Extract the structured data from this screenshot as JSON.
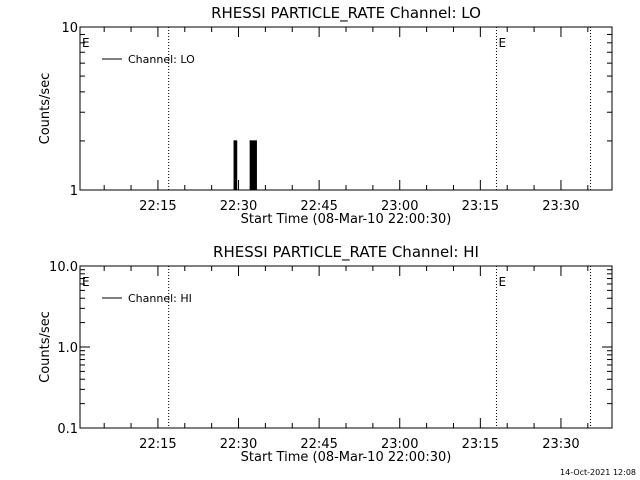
{
  "chart_data": [
    {
      "type": "line",
      "title": "RHESSI PARTICLE_RATE Channel: LO",
      "xlabel": "Start Time (08-Mar-10 22:00:30)",
      "ylabel": "Counts/sec",
      "y_scale": "log",
      "ylim": [
        1,
        10
      ],
      "yticks": [
        "1",
        "10"
      ],
      "xlim": [
        "22:00:30",
        "23:39:30"
      ],
      "xticks": [
        "22:15",
        "22:30",
        "22:45",
        "23:00",
        "23:15",
        "23:30"
      ],
      "legend": {
        "placement": "top-left",
        "entries": [
          "Channel: LO"
        ]
      },
      "series": [
        {
          "name": "Channel: LO",
          "x": [
            "22:29:00",
            "22:29:10",
            "22:29:20",
            "22:29:30",
            "22:29:40",
            "22:30:00",
            "22:32:00",
            "22:32:10",
            "22:32:20",
            "22:32:30",
            "22:32:40",
            "22:32:50",
            "22:33:00",
            "22:33:10",
            "22:33:20"
          ],
          "y": [
            1,
            2,
            1,
            2,
            1,
            1,
            1,
            2,
            1,
            2,
            1,
            2,
            1,
            2,
            1
          ]
        }
      ],
      "annotations": [
        {
          "label": "E",
          "x": "22:00:30"
        },
        {
          "label": "E",
          "x": "23:18:00"
        }
      ],
      "vlines": [
        "22:17:00",
        "23:18:00",
        "23:35:30"
      ]
    },
    {
      "type": "line",
      "title": "RHESSI PARTICLE_RATE Channel: HI",
      "xlabel": "Start Time (08-Mar-10 22:00:30)",
      "ylabel": "Counts/sec",
      "y_scale": "log",
      "ylim": [
        0.1,
        10
      ],
      "yticks": [
        "0.1",
        "1.0",
        "10.0"
      ],
      "xlim": [
        "22:00:30",
        "23:39:30"
      ],
      "xticks": [
        "22:15",
        "22:30",
        "22:45",
        "23:00",
        "23:15",
        "23:30"
      ],
      "legend": {
        "placement": "top-left",
        "entries": [
          "Channel: HI"
        ]
      },
      "series": [
        {
          "name": "Channel: HI",
          "x": [],
          "y": []
        }
      ],
      "annotations": [
        {
          "label": "E",
          "x": "22:00:30"
        },
        {
          "label": "E",
          "x": "23:18:00"
        }
      ],
      "vlines": [
        "22:17:00",
        "23:18:00",
        "23:35:30"
      ]
    }
  ],
  "footer": {
    "timestamp": "14-Oct-2021 12:08"
  }
}
